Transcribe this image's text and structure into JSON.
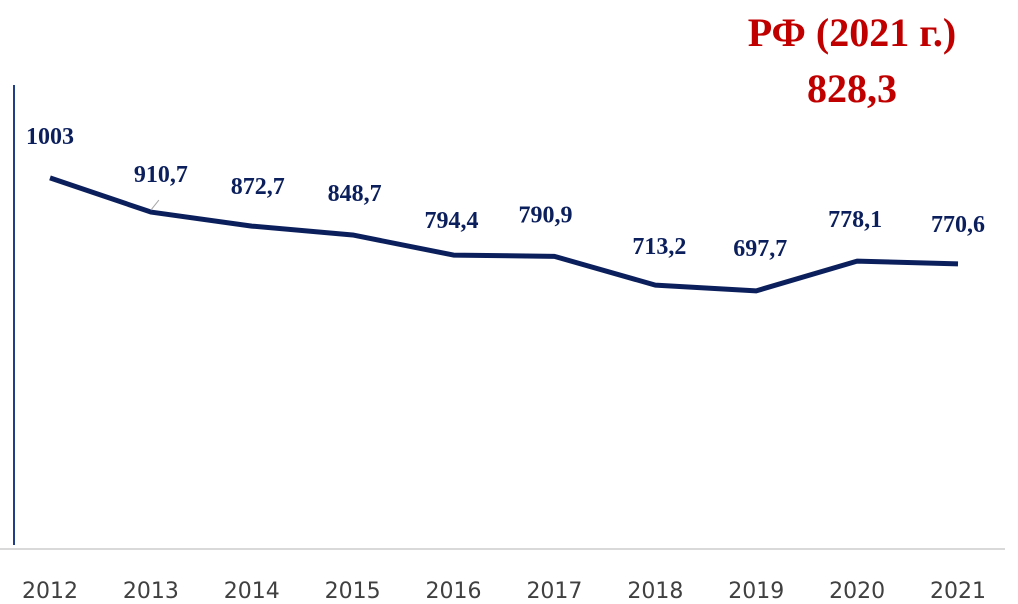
{
  "chart_data": {
    "type": "line",
    "annotations": [
      "РФ (2021 г.)",
      "828,3"
    ],
    "categories": [
      "2012",
      "2013",
      "2014",
      "2015",
      "2016",
      "2017",
      "2018",
      "2019",
      "2020",
      "2021"
    ],
    "series": [
      {
        "color": "#0b1f5c",
        "values": [
          1003,
          910.7,
          872.7,
          848.7,
          794.4,
          790.9,
          713.2,
          697.7,
          778.1,
          770.6
        ],
        "value_labels": [
          "1003",
          "910,7",
          "872,7",
          "848,7",
          "794,4",
          "790,9",
          "713,2",
          "697,7",
          "778,1",
          "770,6"
        ]
      }
    ],
    "ylim": [
      0,
      1200
    ]
  }
}
